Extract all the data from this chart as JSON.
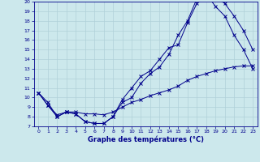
{
  "xlabel": "Graphe des températures (°C)",
  "xlim": [
    -0.5,
    23.5
  ],
  "ylim": [
    7,
    20
  ],
  "yticks": [
    7,
    8,
    9,
    10,
    11,
    12,
    13,
    14,
    15,
    16,
    17,
    18,
    19,
    20
  ],
  "xticks": [
    0,
    1,
    2,
    3,
    4,
    5,
    6,
    7,
    8,
    9,
    10,
    11,
    12,
    13,
    14,
    15,
    16,
    17,
    18,
    19,
    20,
    21,
    22,
    23
  ],
  "background_color": "#cce8ec",
  "grid_color": "#b0d0d8",
  "line_color": "#00008b",
  "line1_x": [
    0,
    1,
    2,
    3,
    4,
    5,
    6,
    7,
    8,
    9,
    10,
    11,
    12,
    13,
    14,
    15,
    16,
    17,
    18,
    19,
    20,
    21,
    22,
    23
  ],
  "line1_y": [
    10.5,
    9.5,
    8.0,
    8.5,
    8.3,
    7.5,
    7.3,
    7.3,
    8.0,
    9.8,
    11.0,
    12.2,
    12.8,
    14.0,
    15.2,
    15.5,
    17.8,
    19.8,
    20.5,
    20.5,
    19.8,
    18.5,
    17.0,
    15.0
  ],
  "line2_x": [
    0,
    1,
    2,
    3,
    4,
    5,
    6,
    7,
    8,
    9,
    10,
    11,
    12,
    13,
    14,
    15,
    16,
    17,
    18,
    19,
    20,
    21,
    22,
    23
  ],
  "line2_y": [
    10.5,
    9.2,
    8.2,
    8.5,
    8.5,
    8.3,
    8.3,
    8.2,
    8.5,
    9.0,
    9.5,
    9.8,
    10.2,
    10.5,
    10.8,
    11.2,
    11.8,
    12.2,
    12.5,
    12.8,
    13.0,
    13.2,
    13.3,
    13.3
  ],
  "line3_x": [
    0,
    1,
    2,
    3,
    4,
    5,
    6,
    7,
    8,
    9,
    10,
    11,
    12,
    13,
    14,
    15,
    16,
    17,
    18,
    19,
    20,
    21,
    22,
    23
  ],
  "line3_y": [
    10.5,
    9.2,
    8.0,
    8.5,
    8.3,
    7.5,
    7.3,
    7.3,
    8.0,
    9.5,
    10.0,
    11.5,
    12.5,
    13.2,
    14.5,
    16.5,
    18.0,
    20.3,
    20.8,
    19.5,
    18.5,
    16.5,
    15.0,
    13.0
  ]
}
